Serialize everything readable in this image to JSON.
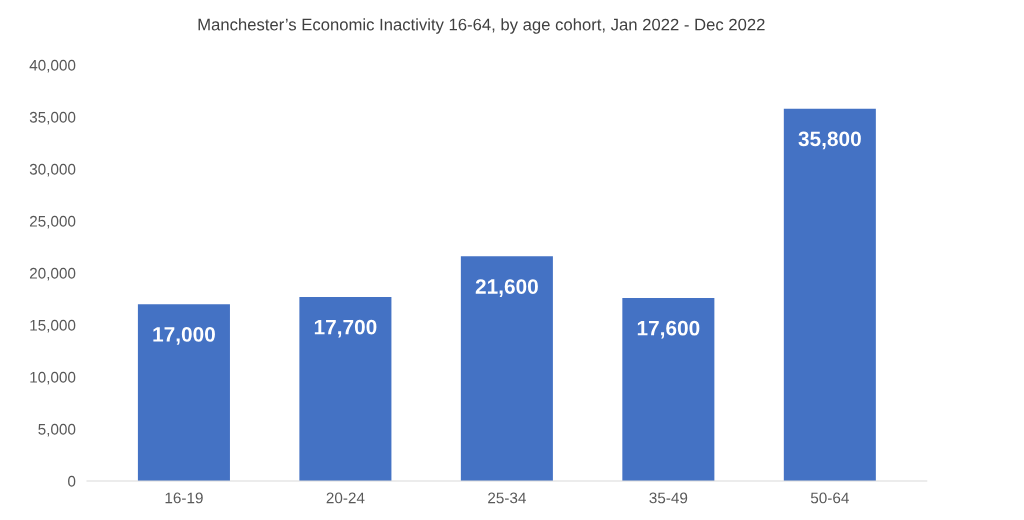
{
  "chart_data": {
    "type": "bar",
    "title": "Manchester’s Economic Inactivity 16-64, by age cohort, Jan 2022 - Dec 2022",
    "categories": [
      "16-19",
      "20-24",
      "25-34",
      "35-49",
      "50-64"
    ],
    "values": [
      17000,
      17700,
      21600,
      17600,
      35800
    ],
    "value_labels": [
      "17,000",
      "17,700",
      "21,600",
      "17,600",
      "35,800"
    ],
    "color": "#4472c4",
    "ylim": [
      0,
      40000
    ],
    "yticks": [
      0,
      {
        "value": 5000,
        "label": "5,000"
      },
      {
        "value": 10000,
        "label": "10,000"
      },
      {
        "value": 15000,
        "label": "15,000"
      },
      {
        "value": 20000,
        "label": "20,000"
      },
      {
        "value": 25000,
        "label": "25,000"
      },
      {
        "value": 30000,
        "label": "30,000"
      },
      {
        "value": 35000,
        "label": "35,000"
      },
      {
        "value": 40000,
        "label": "40,000"
      }
    ],
    "grid": false,
    "legend": false
  }
}
